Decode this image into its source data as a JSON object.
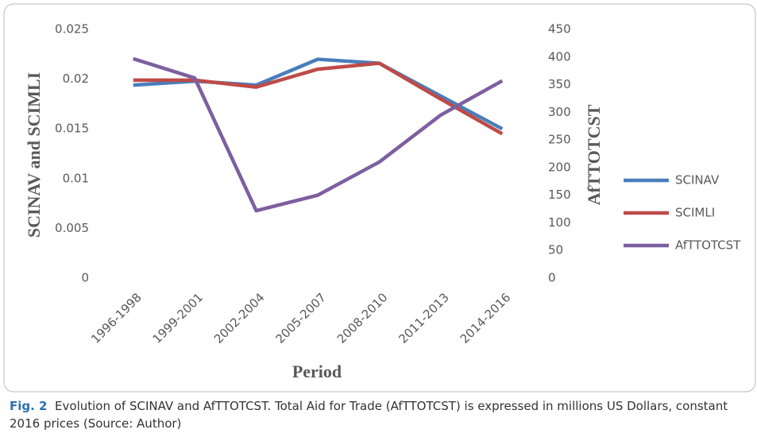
{
  "chart_data": {
    "type": "line",
    "categories": [
      "1996-1998",
      "1999-2001",
      "2002-2004",
      "2005-2007",
      "2008-2010",
      "2011-2013",
      "2014-2016"
    ],
    "series": [
      {
        "name": "SCINAV",
        "color": "#4a7ebb",
        "values": [
          0.0194,
          0.0198,
          0.0194,
          0.022,
          0.0216,
          0.0183,
          0.015
        ]
      },
      {
        "name": "SCIMLI",
        "color": "#be4b48",
        "values": [
          0.0199,
          0.0199,
          0.0192,
          0.021,
          0.0216,
          0.018,
          0.0145
        ]
      },
      {
        "name": "AfTTOTCST",
        "color": "#7d5fa0",
        "axis": "y2",
        "values": [
          397,
          362,
          122,
          150,
          210,
          295,
          357
        ]
      }
    ],
    "ylabel": "SCINAV and SCIMLI",
    "y2label": "AfTTOTCST",
    "xlabel": "Period",
    "ylim": [
      0,
      0.025
    ],
    "yticks": [
      0,
      0.005,
      0.01,
      0.015,
      0.02,
      0.025
    ],
    "y2lim": [
      0,
      450
    ],
    "y2ticks": [
      0,
      50,
      100,
      150,
      200,
      250,
      300,
      350,
      400,
      450
    ],
    "grid": false,
    "legend": "right"
  },
  "caption": {
    "label": "Fig. 2",
    "text": "Evolution of SCINAV and AfTTOTCST. Total Aid for Trade (AfTTOTCST) is expressed in millions US Dollars, constant 2016 prices (Source: Author)"
  }
}
